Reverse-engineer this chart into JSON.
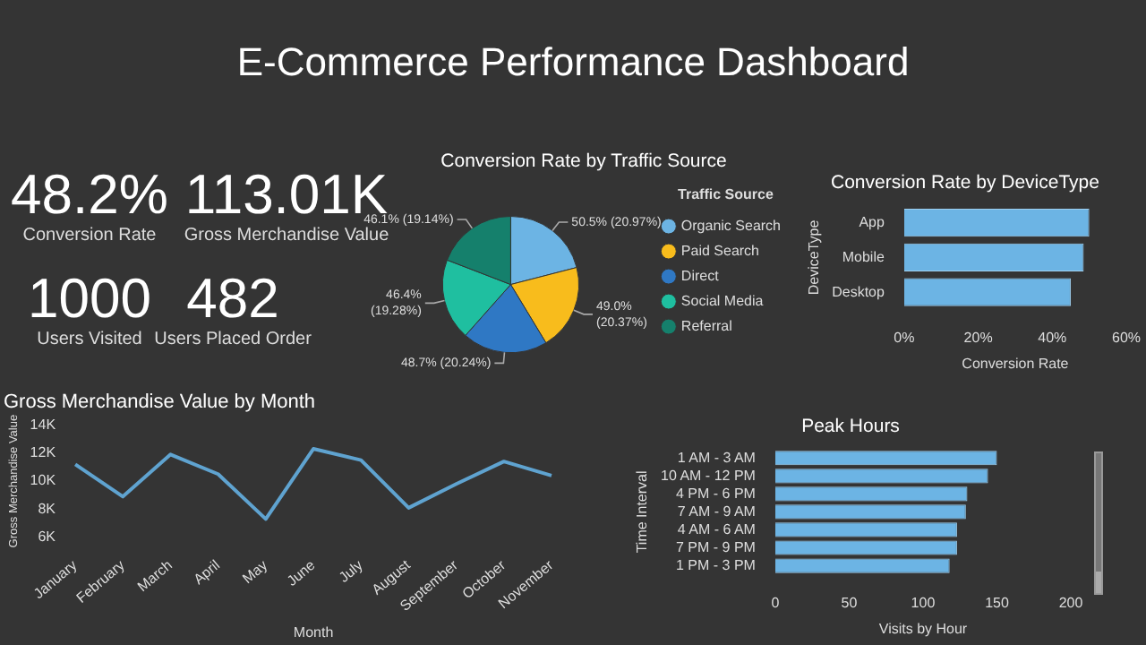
{
  "chart_data": [
    {
      "type": "other",
      "title": "E-Commerce Performance Dashboard",
      "annotations": [
        "48.2%",
        "Conversion Rate",
        "113.01K",
        "Gross Merchandise Value",
        "1000",
        "Users Visited",
        "482",
        "Users Placed Order"
      ]
    },
    {
      "type": "pie",
      "title": "Conversion Rate by Traffic Source",
      "legend_title": "Traffic Source",
      "legend": "right",
      "categories": [
        "Organic Search",
        "Paid Search",
        "Direct",
        "Social Media",
        "Referral"
      ],
      "values": [
        50.5,
        49.0,
        48.7,
        46.4,
        46.1
      ],
      "colors": [
        "#6cb4e4",
        "#f8bc1c",
        "#2f78c4",
        "#1fbfa0",
        "#15806c"
      ],
      "value_labels": [
        "50.5% (20.97%)",
        "49.0% (20.37%)",
        "48.7% (20.24%)",
        "46.4% (19.28%)",
        "46.1% (19.14%)"
      ]
    },
    {
      "type": "bar",
      "orientation": "horizontal",
      "title": "Conversion Rate by DeviceType",
      "categories": [
        "App",
        "Mobile",
        "Desktop"
      ],
      "values": [
        50,
        48.5,
        45
      ],
      "color": "#6cb4e4",
      "xlim": [
        0,
        60
      ],
      "xticks": [
        {
          "value": 0,
          "label": "0%"
        },
        {
          "value": 20,
          "label": "20%"
        },
        {
          "value": 40,
          "label": "40%"
        },
        {
          "value": 60,
          "label": "60%"
        }
      ],
      "xlabel": "Conversion Rate",
      "ylabel": "DeviceType"
    },
    {
      "type": "line",
      "title": "Gross Merchandise Value by Month",
      "categories": [
        "January",
        "February",
        "March",
        "April",
        "May",
        "June",
        "July",
        "August",
        "September",
        "October",
        "November"
      ],
      "values": [
        11200,
        8900,
        11900,
        10500,
        7300,
        12300,
        11500,
        8100,
        9800,
        11400,
        10400
      ],
      "color": "#5fa3d0",
      "ylim": [
        6000,
        14000
      ],
      "yticks": [
        {
          "value": 6000,
          "label": "6K"
        },
        {
          "value": 8000,
          "label": "8K"
        },
        {
          "value": 10000,
          "label": "10K"
        },
        {
          "value": 12000,
          "label": "12K"
        },
        {
          "value": 14000,
          "label": "14K"
        }
      ],
      "xlabel": "Month",
      "ylabel": "Gross Merchandise Value"
    },
    {
      "type": "bar",
      "orientation": "horizontal",
      "title": "Peak Hours",
      "categories": [
        "1 AM - 3 AM",
        "10 AM - 12 PM",
        "4 PM - 6 PM",
        "7 AM - 9 AM",
        "4 AM - 6 AM",
        "7 PM - 9 PM",
        "1 PM - 3 PM"
      ],
      "values": [
        150,
        144,
        130,
        129,
        123,
        123,
        118
      ],
      "color": "#6cb4e4",
      "xlim": [
        0,
        200
      ],
      "xticks": [
        0,
        50,
        100,
        150,
        200
      ],
      "xlabel": "Visits by Hour",
      "ylabel": "Time Interval"
    }
  ]
}
